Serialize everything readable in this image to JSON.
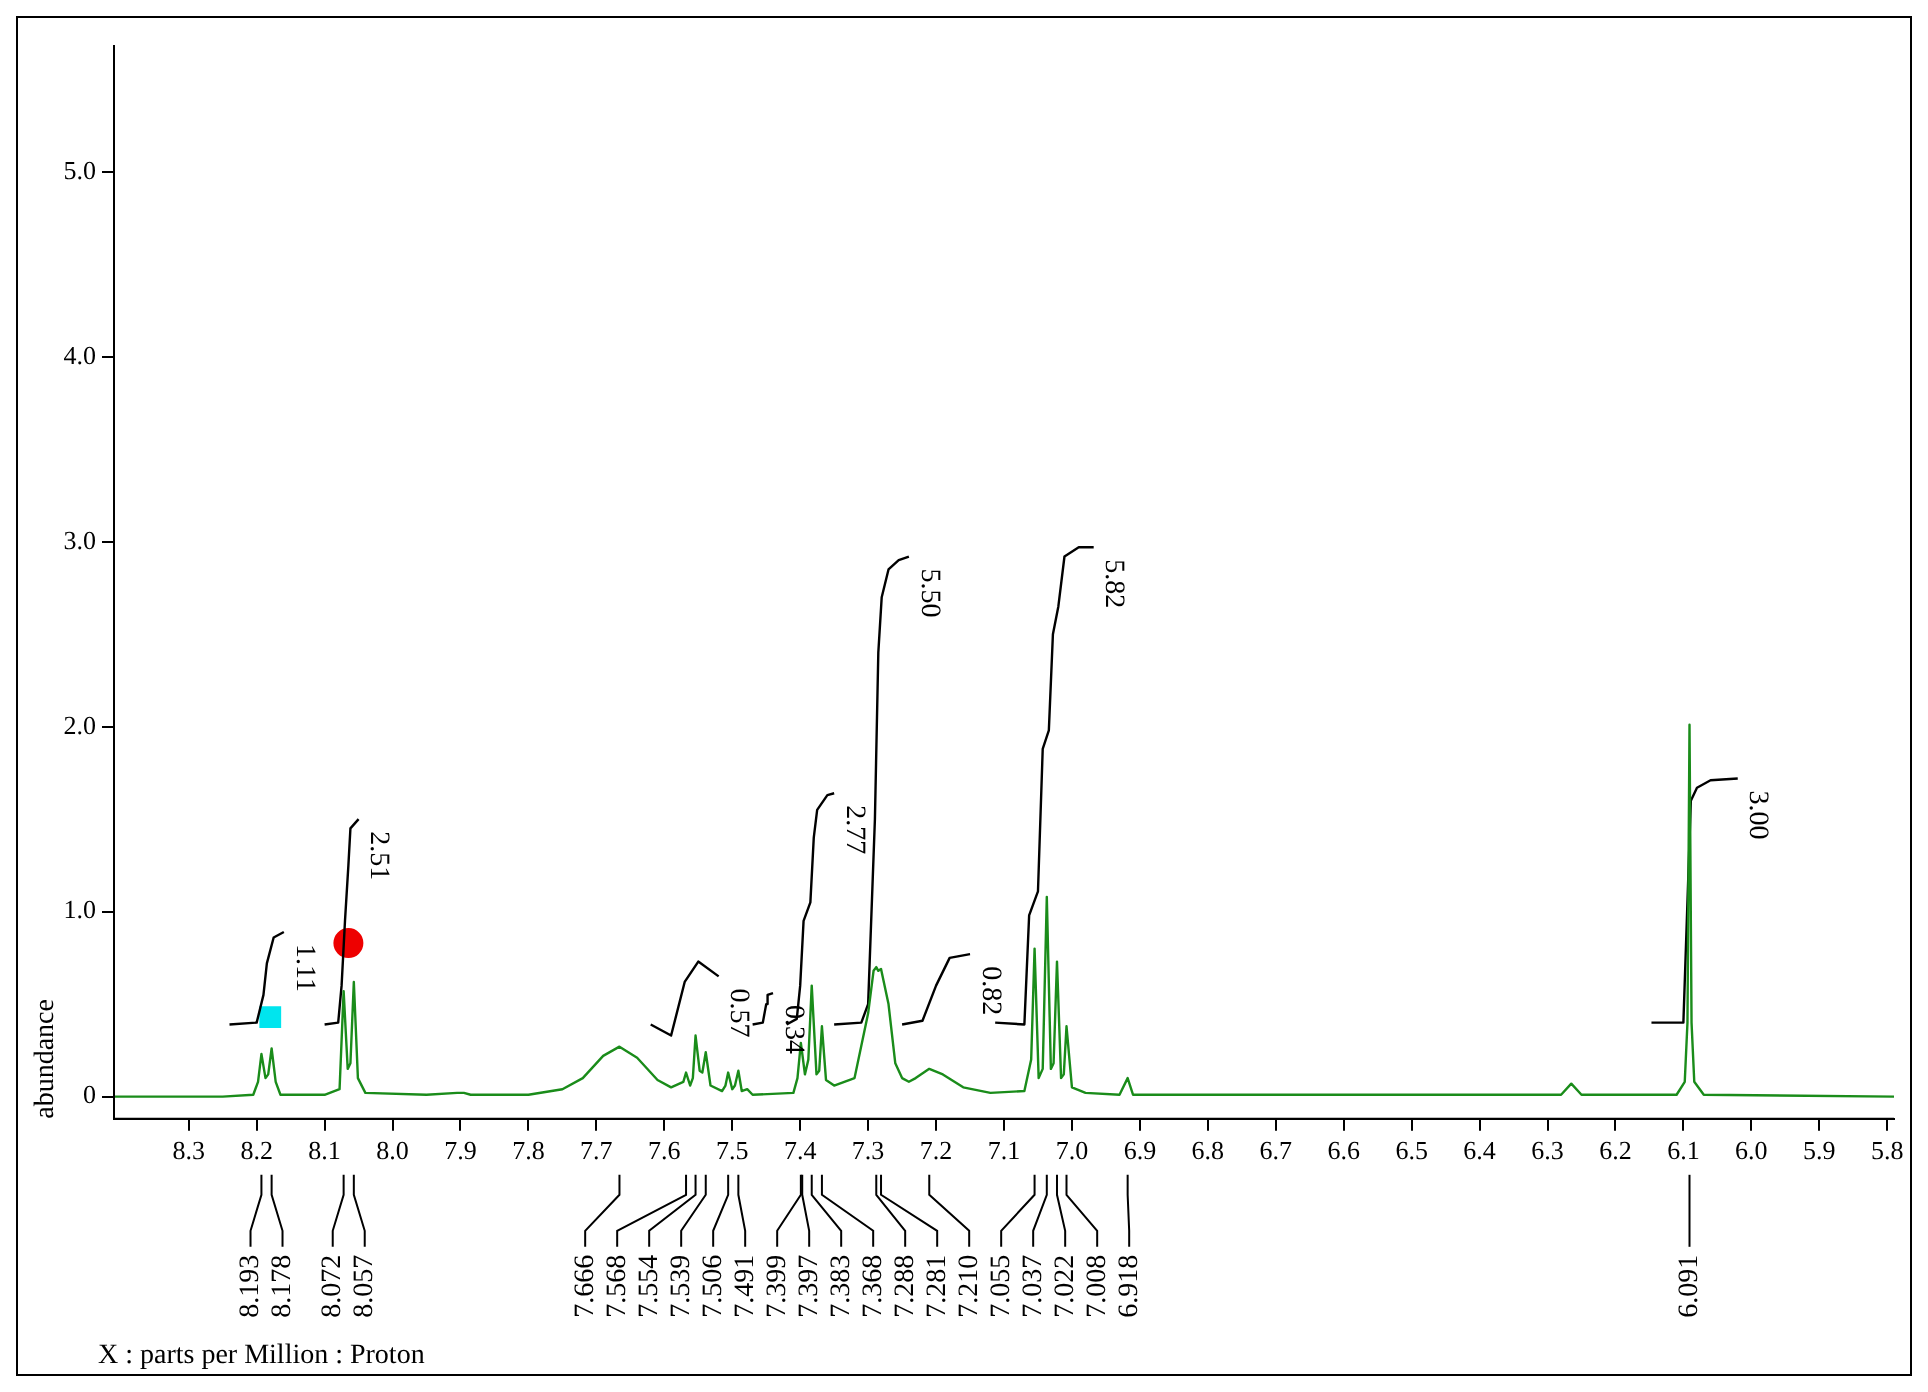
{
  "chart_data": {
    "type": "line",
    "ylabel": "abundance",
    "xlim": [
      8.41,
      5.79
    ],
    "ylim": [
      -0.12,
      5.68
    ],
    "xticks": [
      8.3,
      8.2,
      8.1,
      {
        "value": 8,
        "label": "8.0"
      },
      7.9,
      7.8,
      7.7,
      7.6,
      7.5,
      7.4,
      7.3,
      7.2,
      7.1,
      {
        "value": 7,
        "label": "7.0"
      },
      6.9,
      6.8,
      6.7,
      6.6,
      6.5,
      6.4,
      6.3,
      6.2,
      6.1,
      {
        "value": 6,
        "label": "6.0"
      },
      5.9,
      5.8
    ],
    "yticks": [
      0,
      {
        "value": 1,
        "label": "1.0"
      },
      {
        "value": 2,
        "label": "2.0"
      },
      {
        "value": 3,
        "label": "3.0"
      },
      {
        "value": 4,
        "label": "4.0"
      },
      {
        "value": 5,
        "label": "5.0"
      }
    ],
    "grid": false,
    "legend": false,
    "series": [
      {
        "color": "#1a8c1a",
        "x": [
          8.41,
          8.25,
          8.205,
          8.198,
          8.193,
          8.187,
          8.183,
          8.178,
          8.172,
          8.165,
          8.1,
          8.078,
          8.072,
          8.066,
          8.062,
          8.057,
          8.051,
          8.04,
          7.95,
          7.905,
          7.895,
          7.885,
          7.8,
          7.75,
          7.72,
          7.69,
          7.666,
          7.64,
          7.61,
          7.59,
          7.572,
          7.568,
          7.562,
          7.558,
          7.554,
          7.548,
          7.544,
          7.539,
          7.532,
          7.515,
          7.51,
          7.506,
          7.5,
          7.496,
          7.491,
          7.486,
          7.478,
          7.47,
          7.41,
          7.404,
          7.399,
          7.393,
          7.388,
          7.383,
          7.376,
          7.372,
          7.368,
          7.362,
          7.35,
          7.32,
          7.3,
          7.292,
          7.288,
          7.285,
          7.281,
          7.27,
          7.26,
          7.25,
          7.24,
          7.23,
          7.21,
          7.19,
          7.16,
          7.12,
          7.07,
          7.06,
          7.055,
          7.049,
          7.043,
          7.037,
          7.031,
          7.027,
          7.022,
          7.016,
          7.012,
          7.008,
          7.0,
          6.98,
          6.93,
          6.918,
          6.91,
          6.87,
          6.7,
          6.28,
          6.265,
          6.25,
          6.11,
          6.098,
          6.094,
          6.091,
          6.088,
          6.084,
          6.07,
          5.79
        ],
        "values": [
          0,
          0,
          0.01,
          0.08,
          0.23,
          0.1,
          0.12,
          0.26,
          0.08,
          0.01,
          0.01,
          0.04,
          0.57,
          0.15,
          0.18,
          0.62,
          0.1,
          0.02,
          0.01,
          0.02,
          0.02,
          0.01,
          0.01,
          0.04,
          0.1,
          0.22,
          0.27,
          0.21,
          0.09,
          0.05,
          0.08,
          0.13,
          0.06,
          0.1,
          0.33,
          0.14,
          0.13,
          0.24,
          0.06,
          0.03,
          0.06,
          0.13,
          0.04,
          0.06,
          0.14,
          0.03,
          0.04,
          0.01,
          0.02,
          0.1,
          0.29,
          0.12,
          0.2,
          0.6,
          0.12,
          0.14,
          0.38,
          0.09,
          0.06,
          0.1,
          0.45,
          0.68,
          0.7,
          0.68,
          0.69,
          0.5,
          0.18,
          0.1,
          0.08,
          0.1,
          0.15,
          0.12,
          0.05,
          0.02,
          0.03,
          0.2,
          0.8,
          0.1,
          0.15,
          1.08,
          0.15,
          0.18,
          0.73,
          0.1,
          0.12,
          0.38,
          0.05,
          0.02,
          0.01,
          0.1,
          0.01,
          0.01,
          0.01,
          0.01,
          0.07,
          0.01,
          0.01,
          0.08,
          0.4,
          2.01,
          0.4,
          0.08,
          0.01,
          0
        ]
      },
      {
        "type": "line",
        "name": "1.11",
        "color": "#000000",
        "x": [
          8.24,
          8.2,
          8.19,
          8.185,
          8.175,
          8.16
        ],
        "values": [
          0.39,
          0.4,
          0.55,
          0.72,
          0.86,
          0.89
        ]
      },
      {
        "type": "line",
        "name": "2.51",
        "color": "#000000",
        "x": [
          8.1,
          8.08,
          8.075,
          8.07,
          8.065,
          8.062,
          8.05
        ],
        "values": [
          0.39,
          0.4,
          0.6,
          0.95,
          1.25,
          1.45,
          1.5
        ]
      },
      {
        "type": "line",
        "name": "0.57",
        "color": "#000000",
        "x": [
          7.62,
          7.59,
          7.57,
          7.55,
          7.52
        ],
        "values": [
          0.39,
          0.33,
          0.62,
          0.73,
          0.65
        ]
      },
      {
        "type": "line",
        "name": "0.34",
        "color": "#000000",
        "x": [
          7.47,
          7.455,
          7.45,
          7.448,
          7.44
        ],
        "values": [
          0.39,
          0.4,
          0.5,
          0.55,
          0.56
        ]
      },
      {
        "type": "line",
        "name": "2.77",
        "color": "#000000",
        "x": [
          7.42,
          7.405,
          7.4,
          7.395,
          7.385,
          7.38,
          7.375,
          7.36,
          7.35
        ],
        "values": [
          0.39,
          0.42,
          0.6,
          0.95,
          1.05,
          1.4,
          1.55,
          1.63,
          1.64
        ]
      },
      {
        "type": "line",
        "name": "5.50",
        "color": "#000000",
        "x": [
          7.35,
          7.31,
          7.3,
          7.29,
          7.285,
          7.28,
          7.27,
          7.255,
          7.24
        ],
        "values": [
          0.39,
          0.4,
          0.5,
          1.5,
          2.4,
          2.7,
          2.85,
          2.9,
          2.92
        ]
      },
      {
        "type": "line",
        "name": "0.82",
        "color": "#000000",
        "x": [
          7.25,
          7.22,
          7.2,
          7.18,
          7.15
        ],
        "values": [
          0.39,
          0.41,
          0.6,
          0.75,
          0.77
        ]
      },
      {
        "type": "line",
        "name": "5.82",
        "color": "#000000",
        "x": [
          7.113,
          7.07,
          7.063,
          7.05,
          7.043,
          7.034,
          7.028,
          7.02,
          7.011,
          6.99,
          6.968
        ],
        "values": [
          0.4,
          0.39,
          0.98,
          1.11,
          1.88,
          1.98,
          2.5,
          2.65,
          2.92,
          2.97,
          2.97
        ]
      },
      {
        "type": "line",
        "name": "3.00",
        "color": "#000000",
        "x": [
          6.147,
          6.1,
          6.089,
          6.08,
          6.06,
          6.02
        ],
        "values": [
          0.4,
          0.4,
          1.6,
          1.67,
          1.71,
          1.72
        ]
      },
      {
        "type": "scatter",
        "color": "#00e5ee",
        "marker": "square",
        "x": [
          8.18
        ],
        "values": [
          0.43
        ]
      },
      {
        "type": "scatter",
        "color": "#ee0000",
        "marker": "circle",
        "x": [
          8.065
        ],
        "values": [
          0.83
        ]
      }
    ],
    "annotations": [
      "X : parts per Million : Proton",
      {
        "text": "8.193",
        "x": 8.193
      },
      {
        "text": "8.178",
        "x": 8.178
      },
      {
        "text": "8.072",
        "x": 8.072
      },
      {
        "text": "8.057",
        "x": 8.057
      },
      {
        "text": "7.666",
        "x": 7.666
      },
      {
        "text": "7.568",
        "x": 7.568
      },
      {
        "text": "7.554",
        "x": 7.554
      },
      {
        "text": "7.539",
        "x": 7.539
      },
      {
        "text": "7.506",
        "x": 7.506
      },
      {
        "text": "7.491",
        "x": 7.491
      },
      {
        "text": "7.399",
        "x": 7.399
      },
      {
        "text": "7.397",
        "x": 7.397
      },
      {
        "text": "7.383",
        "x": 7.383
      },
      {
        "text": "7.368",
        "x": 7.368
      },
      {
        "text": "7.288",
        "x": 7.288
      },
      {
        "text": "7.281",
        "x": 7.281
      },
      {
        "text": "7.210",
        "x": 7.21
      },
      {
        "text": "7.055",
        "x": 7.055
      },
      {
        "text": "7.037",
        "x": 7.037
      },
      {
        "text": "7.022",
        "x": 7.022
      },
      {
        "text": "7.008",
        "x": 7.008
      },
      {
        "text": "6.918",
        "x": 6.918
      },
      {
        "text": "6.091",
        "x": 6.091
      }
    ]
  }
}
